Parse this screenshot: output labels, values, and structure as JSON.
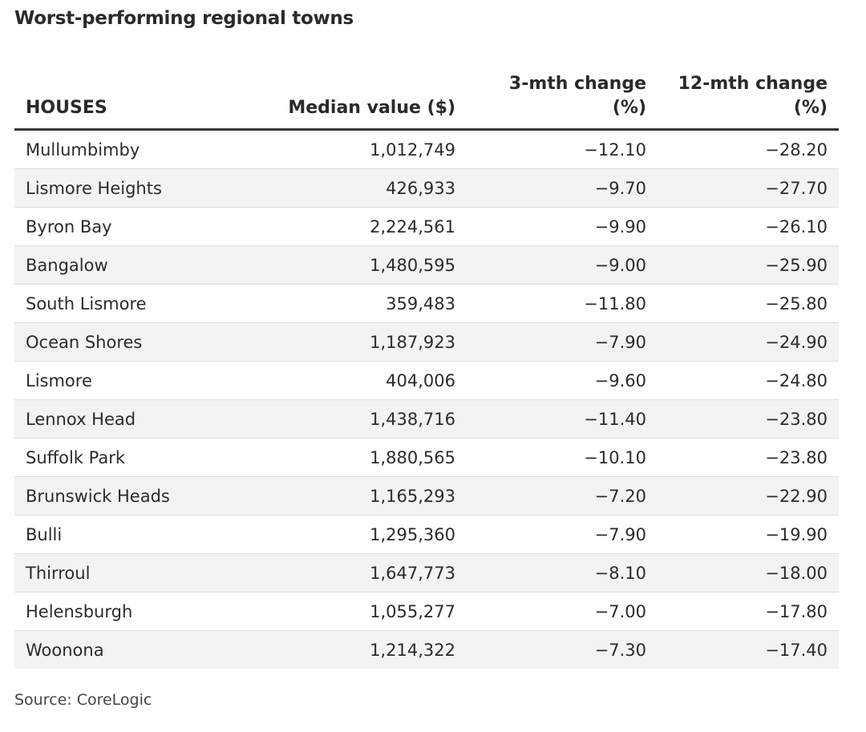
{
  "title": "Worst-performing regional towns",
  "source": "Source: CoreLogic",
  "chart_data": {
    "type": "table",
    "title": "Worst-performing regional towns",
    "columns": [
      "HOUSES",
      "Median value ($)",
      "3-mth change (%)",
      "12-mth change (%)"
    ],
    "rows": [
      [
        "Mullumbimby",
        "1,012,749",
        "−12.10",
        "−28.20"
      ],
      [
        "Lismore Heights",
        "426,933",
        "−9.70",
        "−27.70"
      ],
      [
        "Byron Bay",
        "2,224,561",
        "−9.90",
        "−26.10"
      ],
      [
        "Bangalow",
        "1,480,595",
        "−9.00",
        "−25.90"
      ],
      [
        "South Lismore",
        "359,483",
        "−11.80",
        "−25.80"
      ],
      [
        "Ocean Shores",
        "1,187,923",
        "−7.90",
        "−24.90"
      ],
      [
        "Lismore",
        "404,006",
        "−9.60",
        "−24.80"
      ],
      [
        "Lennox Head",
        "1,438,716",
        "−11.40",
        "−23.80"
      ],
      [
        "Suffolk Park",
        "1,880,565",
        "−10.10",
        "−23.80"
      ],
      [
        "Brunswick Heads",
        "1,165,293",
        "−7.20",
        "−22.90"
      ],
      [
        "Bulli",
        "1,295,360",
        "−7.90",
        "−19.90"
      ],
      [
        "Thirroul",
        "1,647,773",
        "−8.10",
        "−18.00"
      ],
      [
        "Helensburgh",
        "1,055,277",
        "−7.00",
        "−17.80"
      ],
      [
        "Woonona",
        "1,214,322",
        "−7.30",
        "−17.40"
      ]
    ],
    "source": "Source: CoreLogic"
  }
}
